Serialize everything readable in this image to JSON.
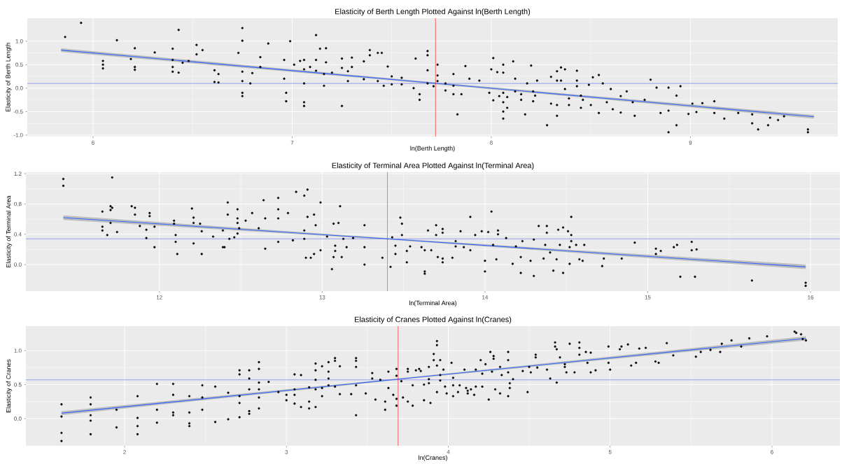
{
  "chart_data": [
    {
      "type": "scatter",
      "title": "Elasticity of Berth Length Plotted Against ln(Berth Length)",
      "xlabel": "ln(Berth Length)",
      "ylabel": "Elasticity of Berth Length",
      "xlim": [
        5.67,
        9.74
      ],
      "ylim": [
        -1.03,
        1.49
      ],
      "xticks": [
        6,
        7,
        8,
        9
      ],
      "yticks": [
        {
          "value": -1,
          "label": "-1.0"
        },
        {
          "value": -0.5,
          "label": "-0.5"
        },
        {
          "value": 0,
          "label": "0.0"
        },
        {
          "value": 0.5,
          "label": "0.5"
        },
        {
          "value": 1,
          "label": "1.0"
        }
      ],
      "grid": true,
      "marker": "circle",
      "ref_lines": [
        {
          "axis": "y",
          "value": 0.1,
          "color": "#5b6ef0"
        },
        {
          "axis": "x",
          "value": 7.72,
          "color": "#ff0000"
        }
      ],
      "series": [
        {
          "color": "#000000",
          "x": [
            5.86,
            5.94,
            6.05,
            6.05,
            6.05,
            6.12,
            6.19,
            6.21,
            6.21,
            6.21,
            6.31,
            6.4,
            6.4,
            6.4,
            6.4,
            6.43,
            6.43,
            6.45,
            6.48,
            6.52,
            6.52,
            6.55,
            6.61,
            6.61,
            6.63,
            6.63,
            6.73,
            6.75,
            6.75,
            6.75,
            6.75,
            6.75,
            6.75,
            6.79,
            6.8,
            6.84,
            6.84,
            6.88,
            6.96,
            6.96,
            6.97,
            6.97,
            6.99,
            7.01,
            7.04,
            7.06,
            7.06,
            7.06,
            7.06,
            7.06,
            7.09,
            7.12,
            7.12,
            7.12,
            7.14,
            7.16,
            7.16,
            7.17,
            7.17,
            7.2,
            7.25,
            7.25,
            7.25,
            7.28,
            7.28,
            7.3,
            7.3,
            7.36,
            7.36,
            7.39,
            7.39,
            7.43,
            7.43,
            7.45,
            7.46,
            7.48,
            7.5,
            7.5,
            7.55,
            7.55,
            7.62,
            7.61,
            7.64,
            7.64,
            7.68,
            7.68,
            7.68,
            7.68,
            7.71,
            7.73,
            7.73,
            7.73,
            7.77,
            7.77,
            7.81,
            7.81,
            7.81,
            7.83,
            7.85,
            7.87,
            7.89,
            7.94,
            7.99,
            8.0,
            8.01,
            8.01,
            8.03,
            8.04,
            8.06,
            8.06,
            8.06,
            8.06,
            8.06,
            8.06,
            8.08,
            8.08,
            8.11,
            8.12,
            8.12,
            8.15,
            8.15,
            8.17,
            8.18,
            8.2,
            8.21,
            8.21,
            8.23,
            8.22,
            8.28,
            8.3,
            8.3,
            8.33,
            8.33,
            8.33,
            8.33,
            8.35,
            8.35,
            8.37,
            8.37,
            8.39,
            8.39,
            8.43,
            8.43,
            8.43,
            8.45,
            8.45,
            8.46,
            8.49,
            8.51,
            8.5,
            8.54,
            8.54,
            8.56,
            8.58,
            8.6,
            8.61,
            8.65,
            8.65,
            8.68,
            8.71,
            8.72,
            8.77,
            8.8,
            8.83,
            8.85,
            8.89,
            8.89,
            8.89,
            8.93,
            8.93,
            8.95,
            8.99,
            9.01,
            9.03,
            9.06,
            9.12,
            9.12,
            9.17,
            9.24,
            9.31,
            9.31,
            9.34,
            9.39,
            9.4,
            9.44,
            9.47,
            9.59,
            9.59
          ],
          "values": [
            1.09,
            1.39,
            0.42,
            0.5,
            0.58,
            1.02,
            0.62,
            0.85,
            0.45,
            0.39,
            0.76,
            0.84,
            0.6,
            0.45,
            0.35,
            1.24,
            0.33,
            0.54,
            0.58,
            0.92,
            0.72,
            0.81,
            0.38,
            0.13,
            0.3,
            0.12,
            0.75,
            1.28,
            1.01,
            0.35,
            0.15,
            -0.1,
            -0.17,
            0.1,
            0.32,
            0.66,
            0.45,
            0.95,
            0.6,
            0.2,
            -0.28,
            -0.1,
            1.0,
            0.5,
            0.58,
            0.6,
            0.4,
            0.1,
            -0.3,
            -0.38,
            0.45,
            1.13,
            0.6,
            0.37,
            0.84,
            0.3,
            0.05,
            0.85,
            0.55,
            0.33,
            0.63,
            0.43,
            -0.38,
            0.36,
            0.15,
            0.65,
            0.45,
            0.57,
            0.19,
            0.81,
            0.7,
            0.75,
            0.15,
            0.75,
            0.05,
            0.46,
            0.25,
            0.08,
            0.22,
            0.08,
            0.63,
            0.0,
            -0.13,
            -0.25,
            0.79,
            0.7,
            0.38,
            0.1,
            0.04,
            0.5,
            0.27,
            0.15,
            0.1,
            -0.05,
            0.3,
            0.05,
            -0.13,
            -0.56,
            -0.13,
            0.47,
            0.2,
            0.16,
            -0.1,
            0.4,
            0.64,
            -0.26,
            0.34,
            -0.17,
            0.5,
            0.33,
            -0.1,
            -0.3,
            -0.5,
            -0.65,
            -0.19,
            -0.42,
            0.57,
            0.2,
            -0.07,
            -0.13,
            -0.25,
            -0.56,
            0.1,
            0.48,
            -0.07,
            -0.28,
            0.16,
            -0.16,
            -0.79,
            0.24,
            -0.33,
            0.36,
            0.16,
            -0.36,
            -0.59,
            0.44,
            0.16,
            0.4,
            -0.02,
            -0.22,
            -0.36,
            0.37,
            0.16,
            0.04,
            -0.16,
            -0.42,
            -0.25,
            0.07,
            0.23,
            -0.36,
            0.28,
            -0.53,
            0.1,
            -0.3,
            -0.02,
            -0.45,
            -0.17,
            -0.52,
            -0.07,
            -0.3,
            -0.59,
            -0.25,
            0.18,
            0.01,
            -0.53,
            0.01,
            -0.48,
            -0.94,
            -0.16,
            -0.79,
            0.04,
            -0.55,
            -0.33,
            -0.51,
            -0.32,
            -0.28,
            -0.53,
            -0.65,
            -0.53,
            -0.56,
            -0.75,
            -0.88,
            -0.79,
            -0.63,
            -0.68,
            -0.6,
            -0.88,
            -0.94
          ]
        },
        {
          "type": "line",
          "marker": "none",
          "color": "#3366ff",
          "x": [
            5.84,
            7.7,
            9.62
          ],
          "values": [
            0.81,
            0.11,
            -0.61
          ],
          "lower": [
            0.77,
            0.09,
            -0.65
          ],
          "upper": [
            0.85,
            0.13,
            -0.57
          ]
        }
      ]
    },
    {
      "type": "scatter",
      "title": "Elasticity of Terminal Area Plotted Against ln(Terminal Area)",
      "xlabel": "ln(Terminal Area)",
      "ylabel": "Elasticity of Terminal Area",
      "xlim": [
        11.18,
        16.18
      ],
      "ylim": [
        -0.35,
        1.22
      ],
      "xticks": [
        12,
        13,
        14,
        15,
        16
      ],
      "yticks": [
        {
          "value": 0,
          "label": "0.0"
        },
        {
          "value": 0.4,
          "label": "0.4"
        },
        {
          "value": 0.8,
          "label": "0.8"
        },
        {
          "value": 1.2,
          "label": "1.2"
        }
      ],
      "grid": true,
      "marker": "circle",
      "ref_lines": [
        {
          "axis": "y",
          "value": 0.34,
          "color": "#5b6ef0"
        },
        {
          "axis": "x",
          "value": 13.4,
          "color": "#ff0000"
        }
      ],
      "series": [
        {
          "color": "#000000",
          "x": [
            11.41,
            11.41,
            11.65,
            11.65,
            11.65,
            11.68,
            11.7,
            11.7,
            11.7,
            11.71,
            11.71,
            11.74,
            11.83,
            11.85,
            11.85,
            11.88,
            11.92,
            11.92,
            11.94,
            11.94,
            11.97,
            11.97,
            12.09,
            12.09,
            12.1,
            12.1,
            12.11,
            12.2,
            12.21,
            12.21,
            12.21,
            12.25,
            12.26,
            12.26,
            12.33,
            12.39,
            12.39,
            12.4,
            12.42,
            12.42,
            12.43,
            12.46,
            12.48,
            12.48,
            12.48,
            12.48,
            12.49,
            12.53,
            12.57,
            12.61,
            12.64,
            12.65,
            12.65,
            12.73,
            12.73,
            12.73,
            12.73,
            12.79,
            12.82,
            12.84,
            12.89,
            12.89,
            12.89,
            12.9,
            12.91,
            12.91,
            12.93,
            12.95,
            12.95,
            12.96,
            12.99,
            12.99,
            13.03,
            13.06,
            13.07,
            13.07,
            13.08,
            13.08,
            13.1,
            13.11,
            13.12,
            13.13,
            13.15,
            13.19,
            13.26,
            13.26,
            13.26,
            13.37,
            13.42,
            13.43,
            13.45,
            13.45,
            13.48,
            13.49,
            13.49,
            13.52,
            13.52,
            13.54,
            13.61,
            13.63,
            13.63,
            13.63,
            13.65,
            13.67,
            13.7,
            13.7,
            13.71,
            13.74,
            13.74,
            13.74,
            13.74,
            13.8,
            13.82,
            13.82,
            13.85,
            13.87,
            13.91,
            13.91,
            13.94,
            13.98,
            14.0,
            14.0,
            14.02,
            14.04,
            14.05,
            14.08,
            14.08,
            14.07,
            14.13,
            14.17,
            14.19,
            14.22,
            14.22,
            14.23,
            14.28,
            14.3,
            14.3,
            14.33,
            14.36,
            14.37,
            14.38,
            14.38,
            14.4,
            14.42,
            14.44,
            14.45,
            14.46,
            14.48,
            14.48,
            14.51,
            14.52,
            14.52,
            14.53,
            14.53,
            14.53,
            14.56,
            14.58,
            14.6,
            14.61,
            14.72,
            14.73,
            14.84,
            14.92,
            15.05,
            15.05,
            15.08,
            15.16,
            15.18,
            15.2,
            15.27,
            15.27,
            15.29,
            15.3,
            15.64,
            15.97,
            15.97
          ],
          "values": [
            1.13,
            1.04,
            0.7,
            0.5,
            0.45,
            0.39,
            0.77,
            0.72,
            0.55,
            1.15,
            0.75,
            0.43,
            0.77,
            0.75,
            0.66,
            0.51,
            0.46,
            0.35,
            0.68,
            0.64,
            0.5,
            0.23,
            0.58,
            0.54,
            0.39,
            0.3,
            0.14,
            0.74,
            0.62,
            0.55,
            0.28,
            0.54,
            0.14,
            0.44,
            0.37,
            0.45,
            0.23,
            0.23,
            0.82,
            0.66,
            0.34,
            0.36,
            0.73,
            0.61,
            0.55,
            0.41,
            0.48,
            0.58,
            0.68,
            0.48,
            0.85,
            0.61,
            0.21,
            0.88,
            0.73,
            0.61,
            0.3,
            0.68,
            0.32,
            0.96,
            0.34,
            0.45,
            0.91,
            0.09,
            0.63,
            0.99,
            0.09,
            0.66,
            0.14,
            0.52,
            0.82,
            0.19,
            0.37,
            -0.06,
            0.1,
            0.54,
            0.25,
            0.18,
            0.55,
            0.77,
            0.1,
            0.34,
            0.23,
            0.35,
            0.52,
            0.23,
            0.0,
            0.09,
            -0.03,
            0.36,
            0.25,
            0.14,
            0.62,
            0.54,
            0.39,
            0.18,
            0.03,
            0.24,
            0.23,
            0.19,
            -0.09,
            -0.12,
            0.45,
            0.19,
            0.52,
            0.39,
            0.1,
            0.47,
            0.42,
            0.08,
            0.03,
            0.09,
            0.31,
            0.24,
            0.44,
            0.23,
            0.63,
            0.19,
            0.39,
            0.44,
            0.05,
            -0.09,
            0.43,
            0.7,
            0.26,
            0.45,
            0.4,
            0.07,
            0.35,
            0.01,
            0.24,
            0.1,
            -0.11,
            0.31,
            0.05,
            0.33,
            -0.15,
            0.51,
            0.08,
            0.26,
            0.51,
            0.42,
            0.16,
            -0.08,
            0.07,
            0.46,
            0.26,
            0.49,
            -0.11,
            0.44,
            0.23,
            0.01,
            0.63,
            0.39,
            0.31,
            0.26,
            0.07,
            0.05,
            0.26,
            -0.02,
            0.08,
            0.08,
            0.29,
            0.21,
            0.14,
            0.18,
            0.23,
            0.26,
            -0.16,
            0.3,
            0.19,
            -0.16,
            0.2,
            -0.21,
            -0.24,
            -0.28
          ]
        },
        {
          "type": "line",
          "marker": "none",
          "color": "#3366ff",
          "x": [
            11.41,
            13.4,
            15.97
          ],
          "values": [
            0.62,
            0.34,
            -0.03
          ],
          "lower": [
            0.59,
            0.33,
            -0.06
          ],
          "upper": [
            0.65,
            0.35,
            0.0
          ]
        }
      ]
    },
    {
      "type": "scatter",
      "title": "Elasticity of Cranes Plotted Against ln(Cranes)",
      "xlabel": "ln(Cranes)",
      "ylabel": "Elasticity of Cranes",
      "xlim": [
        1.39,
        6.42
      ],
      "ylim": [
        -0.4,
        1.36
      ],
      "xticks": [
        2,
        3,
        4,
        5,
        6
      ],
      "yticks": [
        {
          "value": 0,
          "label": "0.0"
        },
        {
          "value": 0.5,
          "label": "0.5"
        },
        {
          "value": 1,
          "label": "1.0"
        }
      ],
      "grid": true,
      "marker": "circle",
      "ref_lines": [
        {
          "axis": "y",
          "value": 0.57,
          "color": "#5b6ef0"
        },
        {
          "axis": "x",
          "value": 3.69,
          "color": "#ff0000"
        }
      ],
      "series": [
        {
          "color": "#000000",
          "x": [
            1.61,
            1.61,
            1.61,
            1.61,
            1.79,
            1.79,
            1.79,
            1.79,
            1.79,
            1.95,
            1.95,
            2.08,
            2.08,
            2.08,
            2.08,
            2.2,
            2.2,
            2.2,
            2.3,
            2.3,
            2.3,
            2.3,
            2.4,
            2.4,
            2.4,
            2.4,
            2.48,
            2.48,
            2.48,
            2.56,
            2.56,
            2.64,
            2.64,
            2.71,
            2.71,
            2.71,
            2.71,
            2.71,
            2.77,
            2.77,
            2.77,
            2.77,
            2.77,
            2.83,
            2.83,
            2.83,
            2.83,
            2.83,
            2.83,
            2.89,
            2.95,
            3.0,
            3.0,
            3.05,
            3.05,
            3.05,
            3.05,
            3.09,
            3.09,
            3.14,
            3.14,
            3.14,
            3.18,
            3.18,
            3.18,
            3.18,
            3.18,
            3.22,
            3.22,
            3.22,
            3.26,
            3.26,
            3.26,
            3.26,
            3.3,
            3.3,
            3.3,
            3.33,
            3.33,
            3.4,
            3.43,
            3.43,
            3.43,
            3.43,
            3.43,
            3.49,
            3.53,
            3.53,
            3.55,
            3.58,
            3.61,
            3.61,
            3.63,
            3.63,
            3.66,
            3.68,
            3.68,
            3.68,
            3.68,
            3.71,
            3.72,
            3.75,
            3.75,
            3.75,
            3.78,
            3.78,
            3.8,
            3.82,
            3.83,
            3.85,
            3.85,
            3.88,
            3.88,
            3.88,
            3.89,
            3.91,
            3.91,
            3.93,
            3.93,
            3.93,
            3.93,
            3.95,
            3.95,
            3.95,
            3.97,
            3.98,
            3.99,
            4.02,
            4.03,
            4.03,
            4.03,
            4.06,
            4.07,
            4.1,
            4.11,
            4.12,
            4.12,
            4.14,
            4.16,
            4.17,
            4.17,
            4.2,
            4.21,
            4.21,
            4.23,
            4.25,
            4.26,
            4.27,
            4.28,
            4.28,
            4.29,
            4.32,
            4.32,
            4.33,
            4.37,
            4.37,
            4.37,
            4.37,
            4.38,
            4.38,
            4.4,
            4.46,
            4.49,
            4.5,
            4.51,
            4.54,
            4.54,
            4.55,
            4.61,
            4.63,
            4.66,
            4.66,
            4.67,
            4.67,
            4.69,
            4.72,
            4.72,
            4.73,
            4.75,
            4.78,
            4.81,
            4.81,
            4.81,
            4.85,
            4.86,
            4.88,
            4.88,
            4.91,
            4.99,
            4.99,
            5.0,
            5.06,
            5.07,
            5.11,
            5.13,
            5.16,
            5.18,
            5.22,
            5.28,
            5.3,
            5.35,
            5.39,
            5.53,
            5.56,
            5.62,
            5.68,
            5.69,
            5.75,
            5.81,
            5.86,
            5.97,
            6.14,
            6.15,
            6.18,
            6.19,
            6.21
          ],
          "values": [
            0.21,
            0.03,
            -0.21,
            -0.33,
            0.31,
            0.21,
            0.05,
            -0.03,
            -0.23,
            0.13,
            -0.13,
            0.33,
            0.01,
            -0.11,
            -0.23,
            0.51,
            0.13,
            -0.06,
            0.51,
            0.35,
            0.09,
            0.05,
            0.33,
            0.09,
            -0.07,
            -0.11,
            0.49,
            0.31,
            0.13,
            0.47,
            -0.05,
            0.38,
            -0.01,
            0.71,
            0.65,
            0.33,
            0.23,
            0.02,
            0.71,
            0.59,
            0.43,
            0.11,
            0.07,
            0.83,
            0.73,
            0.53,
            0.43,
            0.31,
            0.15,
            0.54,
            0.39,
            0.35,
            0.27,
            0.65,
            0.43,
            0.35,
            0.22,
            0.64,
            0.17,
            0.25,
            0.15,
            0.46,
            0.81,
            0.71,
            0.57,
            0.43,
            0.17,
            0.77,
            0.45,
            0.33,
            0.83,
            0.69,
            0.59,
            0.49,
            0.89,
            0.85,
            0.47,
            0.77,
            0.36,
            0.36,
            0.89,
            0.85,
            0.76,
            0.49,
            0.05,
            0.37,
            0.67,
            0.59,
            0.28,
            0.57,
            0.25,
            0.13,
            0.69,
            0.45,
            0.35,
            0.73,
            0.63,
            0.29,
            0.19,
            0.55,
            0.31,
            0.73,
            0.69,
            0.25,
            0.49,
            0.19,
            0.71,
            0.73,
            0.7,
            0.5,
            0.27,
            0.76,
            0.58,
            0.52,
            0.23,
            0.95,
            0.86,
            1.14,
            1.08,
            0.78,
            0.39,
            0.86,
            0.64,
            0.56,
            0.72,
            0.47,
            0.37,
            0.82,
            0.6,
            0.49,
            0.33,
            0.39,
            0.49,
            0.72,
            0.45,
            0.41,
            0.37,
            0.43,
            0.35,
            0.72,
            0.47,
            0.86,
            0.47,
            0.66,
            0.8,
            0.28,
            0.98,
            0.69,
            0.92,
            0.88,
            0.43,
            0.76,
            0.37,
            0.64,
            0.98,
            0.86,
            0.68,
            0.33,
            0.52,
            0.45,
            0.58,
            0.7,
            0.39,
            0.76,
            0.68,
            0.94,
            0.9,
            0.75,
            0.72,
            0.59,
            1.12,
            1.06,
            1.02,
            0.53,
            0.9,
            0.8,
            0.76,
            0.68,
            1.1,
            0.68,
            1.12,
            0.94,
            1.04,
            0.98,
            0.82,
            0.97,
            0.68,
            0.71,
            1.06,
            0.82,
            0.72,
            1.02,
            1.06,
            1.09,
            0.78,
            0.82,
            1.03,
            1.04,
            0.84,
            0.82,
            1.11,
            0.93,
            0.91,
            0.98,
            1.01,
            0.98,
            1.1,
            1.15,
            1.06,
            1.18,
            1.21,
            1.28,
            1.26,
            1.24,
            1.17,
            1.15
          ]
        },
        {
          "type": "line",
          "marker": "none",
          "color": "#3366ff",
          "x": [
            1.61,
            3.69,
            6.21
          ],
          "values": [
            0.08,
            0.58,
            1.18
          ],
          "lower": [
            0.05,
            0.57,
            1.15
          ],
          "upper": [
            0.11,
            0.59,
            1.21
          ]
        }
      ]
    }
  ]
}
